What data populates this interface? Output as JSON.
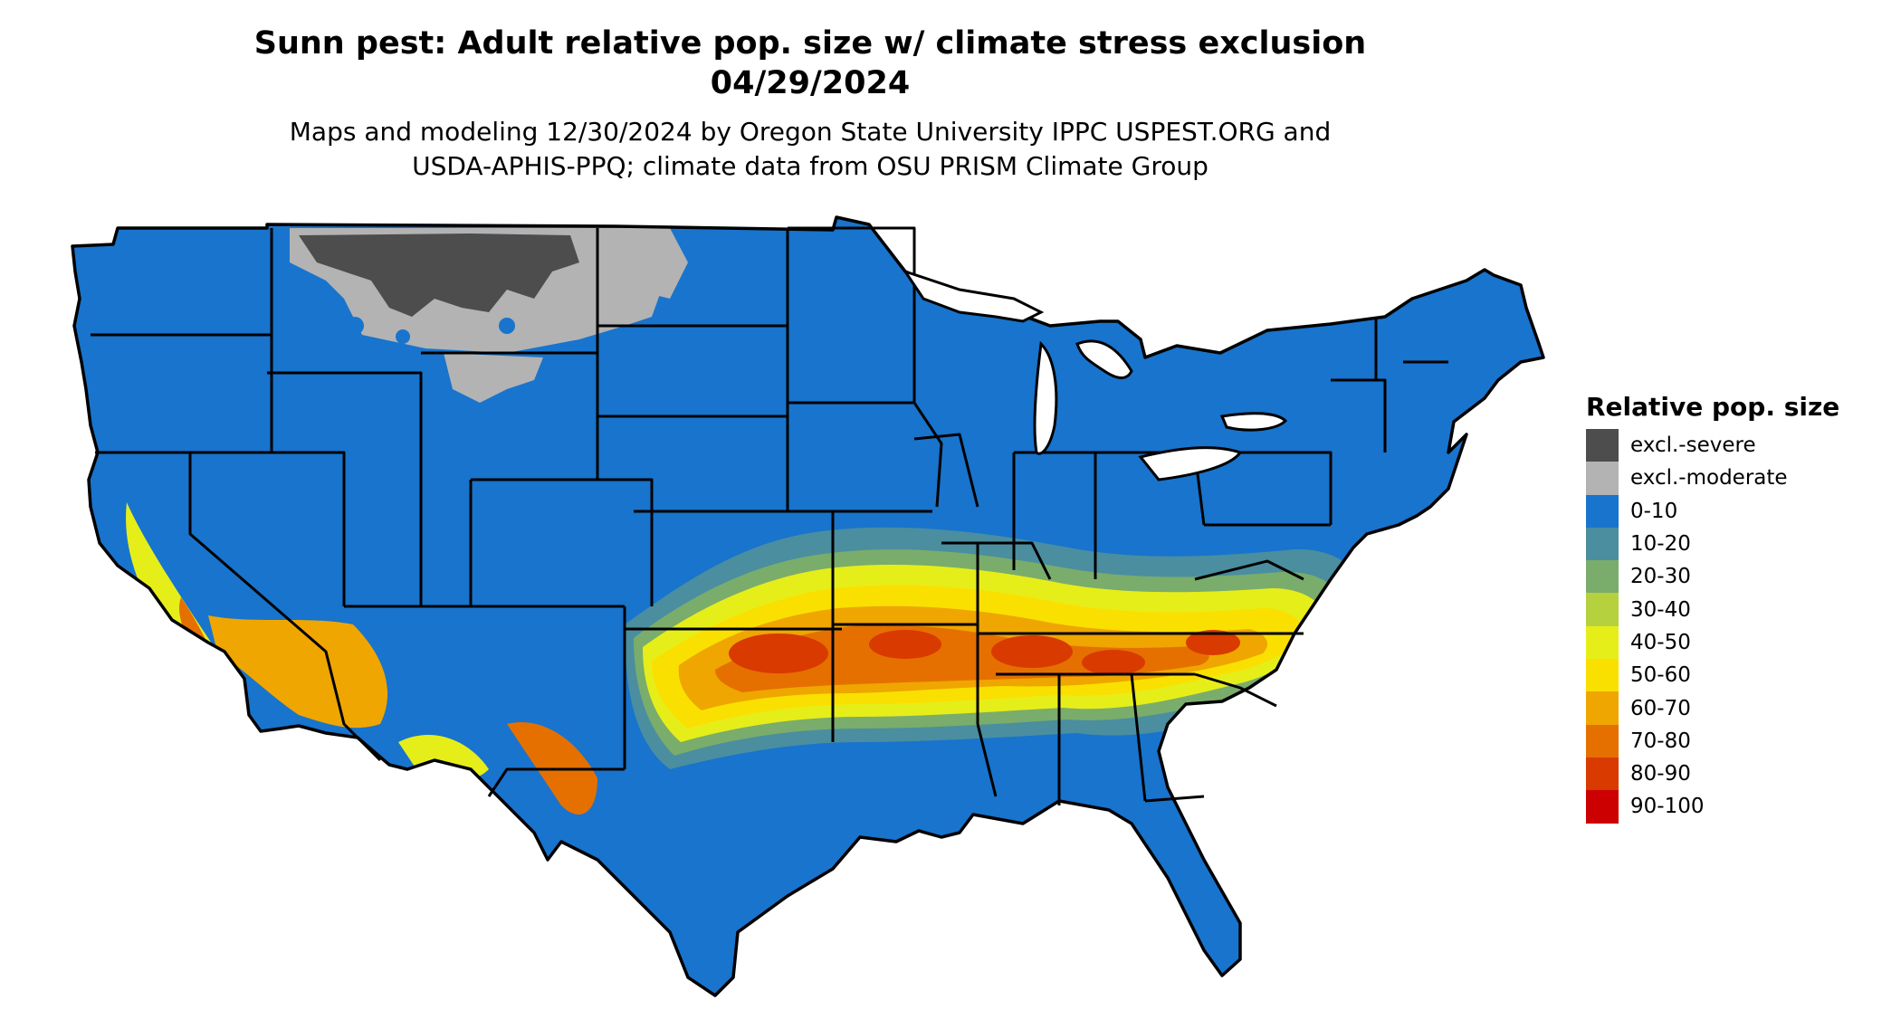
{
  "header": {
    "title_line1": "Sunn pest: Adult relative pop. size w/ climate stress exclusion",
    "title_line2": "04/29/2024",
    "subtitle_line1": "Maps and modeling 12/30/2024 by Oregon State University IPPC USPEST.ORG and",
    "subtitle_line2": "USDA-APHIS-PPQ; climate data from OSU PRISM Climate Group"
  },
  "legend": {
    "title": "Relative pop. size",
    "items": [
      {
        "label": "excl.-severe",
        "color": "#4d4d4d"
      },
      {
        "label": "excl.-moderate",
        "color": "#b3b3b3"
      },
      {
        "label": "0-10",
        "color": "#1874cd"
      },
      {
        "label": "10-20",
        "color": "#4a8ea0"
      },
      {
        "label": "20-30",
        "color": "#7aad6b"
      },
      {
        "label": "30-40",
        "color": "#b5d13e"
      },
      {
        "label": "40-50",
        "color": "#e6ee1a"
      },
      {
        "label": "50-60",
        "color": "#fae000"
      },
      {
        "label": "60-70",
        "color": "#efa600"
      },
      {
        "label": "70-80",
        "color": "#e57000"
      },
      {
        "label": "80-90",
        "color": "#d83a00"
      },
      {
        "label": "90-100",
        "color": "#cc0000"
      }
    ]
  },
  "map": {
    "base_color": "#1874cd",
    "border_color": "#000000"
  }
}
